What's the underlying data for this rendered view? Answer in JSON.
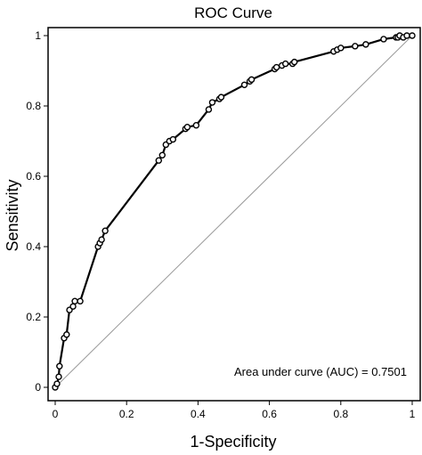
{
  "chart_data": {
    "type": "line",
    "title": "ROC Curve",
    "xlabel": "1-Specificity",
    "ylabel": "Sensitivity",
    "xlim": [
      0,
      1
    ],
    "ylim": [
      0,
      1
    ],
    "x_ticks": [
      "0",
      "0.2",
      "0.4",
      "0.6",
      "0.8",
      "1"
    ],
    "y_ticks": [
      "0",
      "0.2",
      "0.4",
      "0.6",
      "0.8",
      "1"
    ],
    "annotation": "Area under curve (AUC) = 0.7501",
    "grid": false,
    "series": [
      {
        "role": "roc-curve",
        "x": [
          0.0,
          0.005,
          0.01,
          0.012,
          0.025,
          0.032,
          0.04,
          0.05,
          0.055,
          0.07,
          0.12,
          0.125,
          0.13,
          0.14,
          0.29,
          0.3,
          0.31,
          0.32,
          0.33,
          0.365,
          0.37,
          0.395,
          0.43,
          0.44,
          0.46,
          0.465,
          0.53,
          0.545,
          0.55,
          0.615,
          0.62,
          0.635,
          0.645,
          0.665,
          0.67,
          0.78,
          0.79,
          0.8,
          0.84,
          0.87,
          0.92,
          0.955,
          0.96,
          0.965,
          0.975,
          0.985,
          1.0
        ],
        "y": [
          0.0,
          0.01,
          0.03,
          0.06,
          0.14,
          0.15,
          0.22,
          0.23,
          0.245,
          0.245,
          0.4,
          0.41,
          0.42,
          0.445,
          0.645,
          0.66,
          0.69,
          0.7,
          0.705,
          0.735,
          0.74,
          0.745,
          0.79,
          0.81,
          0.82,
          0.825,
          0.86,
          0.87,
          0.875,
          0.905,
          0.91,
          0.915,
          0.92,
          0.92,
          0.925,
          0.955,
          0.96,
          0.965,
          0.97,
          0.975,
          0.99,
          0.995,
          0.995,
          1.0,
          0.995,
          1.0,
          1.0
        ]
      },
      {
        "role": "reference-diagonal",
        "x": [
          0,
          1
        ],
        "y": [
          0,
          1
        ]
      }
    ]
  }
}
